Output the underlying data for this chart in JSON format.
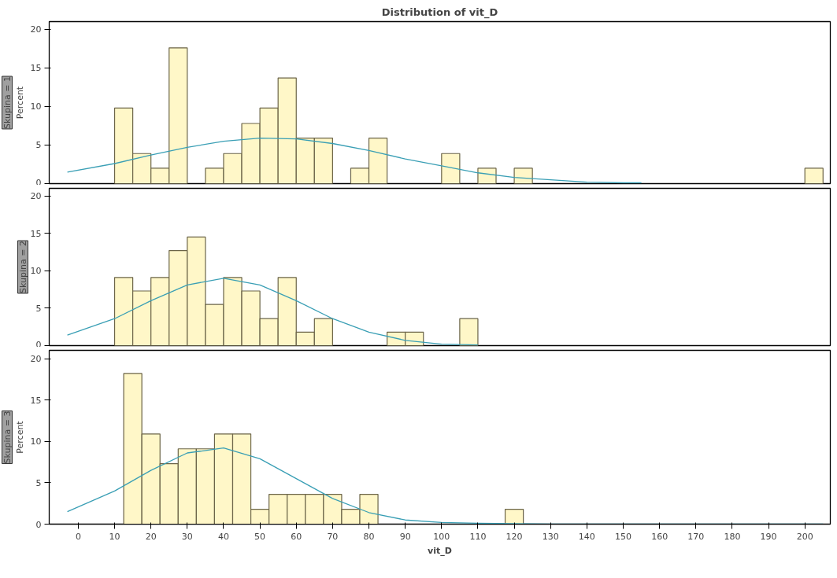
{
  "chart_data": [
    {
      "type": "histogram",
      "title": "Distribution of vit_D",
      "subtitle": "Skupina = 1",
      "ylabel": "Percent",
      "tick_labels": "y",
      "grid": false,
      "color": "#fff7c8",
      "bins": [
        10,
        15,
        20,
        25,
        30,
        35,
        40,
        45,
        50,
        55,
        60,
        65,
        70,
        75,
        80,
        85,
        90,
        95,
        100,
        105,
        110,
        115,
        120,
        125,
        130,
        135,
        140,
        145,
        150,
        155,
        160,
        165,
        170,
        175,
        180,
        185,
        190,
        195,
        200,
        205
      ],
      "values": [
        9.8,
        3.9,
        2.0,
        17.6,
        0,
        2.0,
        3.9,
        7.8,
        9.8,
        13.7,
        5.9,
        5.9,
        0,
        2.0,
        5.9,
        0,
        0,
        0,
        3.9,
        0,
        2.0,
        0,
        2.0,
        0,
        0,
        0,
        0,
        0,
        0,
        0,
        0,
        0,
        0,
        0,
        0,
        0,
        0,
        0,
        2.0
      ],
      "xlim": [
        -8,
        207
      ],
      "xticks": [
        0,
        10,
        20,
        30,
        40,
        50,
        60,
        70,
        80,
        90,
        100,
        110,
        120,
        130,
        140,
        150,
        160,
        170,
        180,
        190,
        200
      ],
      "ylim": [
        0,
        21
      ],
      "yticks": [
        0,
        5,
        10,
        15,
        20
      ],
      "series": [
        {
          "type": "line",
          "color": "#3a9fb5",
          "x": [
            -3,
            10,
            20,
            30,
            40,
            50,
            60,
            70,
            80,
            90,
            100,
            110,
            120,
            130,
            140,
            150,
            155
          ],
          "values": [
            1.5,
            2.6,
            3.7,
            4.7,
            5.5,
            5.9,
            5.8,
            5.2,
            4.3,
            3.2,
            2.3,
            1.4,
            0.8,
            0.5,
            0.2,
            0.1,
            0.1
          ]
        }
      ]
    },
    {
      "type": "histogram",
      "subtitle": "Skupina = 2",
      "tick_labels": "y",
      "grid": false,
      "color": "#fff7c8",
      "bins": [
        10,
        15,
        20,
        25,
        30,
        35,
        40,
        45,
        50,
        55,
        60,
        65,
        70,
        75,
        80,
        85,
        90,
        95,
        100,
        105,
        110
      ],
      "values": [
        9.1,
        7.3,
        9.1,
        12.7,
        14.5,
        5.5,
        9.1,
        7.3,
        3.6,
        9.1,
        1.8,
        3.6,
        0,
        0,
        0,
        1.8,
        1.8,
        0,
        0,
        3.6
      ],
      "xlim": [
        -8,
        207
      ],
      "xticks": [
        0,
        10,
        20,
        30,
        40,
        50,
        60,
        70,
        80,
        90,
        100,
        110,
        120,
        130,
        140,
        150,
        160,
        170,
        180,
        190,
        200
      ],
      "ylim": [
        0,
        21
      ],
      "yticks": [
        0,
        5,
        10,
        15,
        20
      ],
      "series": [
        {
          "type": "line",
          "color": "#3a9fb5",
          "x": [
            -3,
            10,
            20,
            30,
            40,
            50,
            60,
            70,
            80,
            90,
            100,
            110
          ],
          "values": [
            1.4,
            3.6,
            6.0,
            8.1,
            9.0,
            8.1,
            6.0,
            3.6,
            1.8,
            0.7,
            0.2,
            0.1
          ]
        }
      ]
    },
    {
      "type": "histogram",
      "subtitle": "Skupina = 3",
      "ylabel": "Percent",
      "xlabel": "vit_D",
      "grid": false,
      "color": "#fff7c8",
      "bins": [
        12.5,
        17.5,
        22.5,
        27.5,
        32.5,
        37.5,
        42.5,
        47.5,
        52.5,
        57.5,
        62.5,
        67.5,
        72.5,
        77.5,
        82.5,
        87.5,
        92.5,
        97.5,
        102.5,
        107.5,
        112.5,
        117.5,
        122.5
      ],
      "values": [
        18.2,
        10.9,
        7.3,
        9.1,
        9.1,
        10.9,
        10.9,
        1.8,
        3.6,
        3.6,
        3.6,
        3.6,
        1.8,
        3.6,
        0,
        0,
        0,
        0,
        0,
        0,
        0,
        1.8
      ],
      "xlim": [
        -8,
        207
      ],
      "xticks": [
        0,
        10,
        20,
        30,
        40,
        50,
        60,
        70,
        80,
        90,
        100,
        110,
        120,
        130,
        140,
        150,
        160,
        170,
        180,
        190,
        200
      ],
      "ylim": [
        0,
        21
      ],
      "yticks": [
        0,
        5,
        10,
        15,
        20
      ],
      "series": [
        {
          "type": "line",
          "color": "#3a9fb5",
          "x": [
            -3,
            10,
            20,
            30,
            40,
            50,
            60,
            70,
            80,
            90,
            100,
            110,
            130,
            160,
            205
          ],
          "values": [
            1.5,
            4.0,
            6.5,
            8.6,
            9.2,
            7.9,
            5.5,
            3.1,
            1.4,
            0.5,
            0.2,
            0.1,
            0,
            0,
            0
          ]
        }
      ]
    }
  ]
}
